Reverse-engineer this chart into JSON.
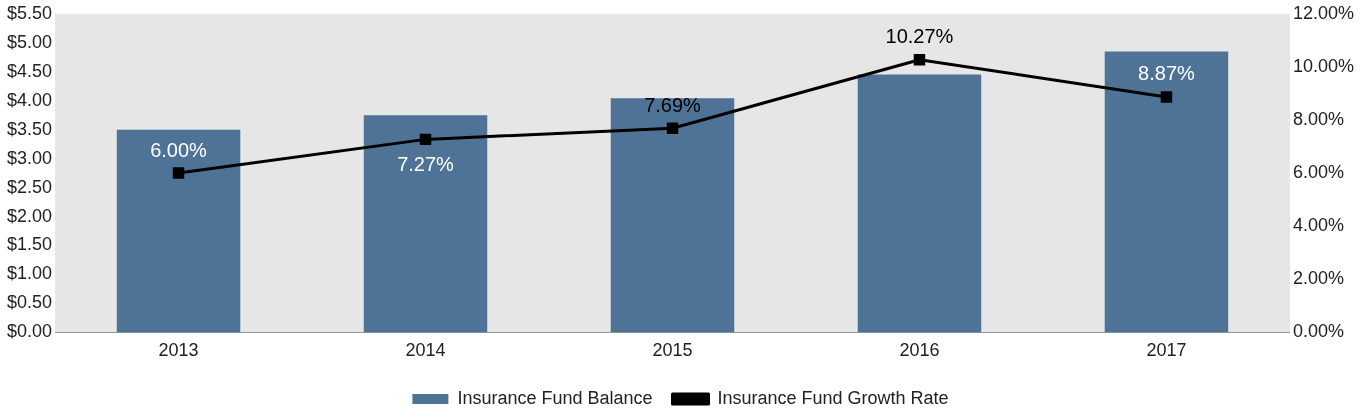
{
  "chart_data": {
    "type": "bar",
    "categories": [
      "2013",
      "2014",
      "2015",
      "2016",
      "2017"
    ],
    "series": [
      {
        "name": "Insurance Fund Balance",
        "color": "#4e7397",
        "values": [
          3.5,
          3.75,
          4.04,
          4.45,
          4.85
        ]
      },
      {
        "name": "Insurance Fund Growth Rate",
        "type": "line",
        "axis": "y2",
        "color": "#000000",
        "marker": "square",
        "values": [
          6.0,
          7.27,
          7.69,
          10.27,
          8.87
        ],
        "value_labels": [
          "6.00%",
          "7.27%",
          "7.69%",
          "10.27%",
          "8.87%"
        ]
      }
    ],
    "ylim": [
      0,
      5.5
    ],
    "yticks": [
      {
        "value": 0,
        "label": "$0.00"
      },
      {
        "value": 0.5,
        "label": "$0.50"
      },
      {
        "value": 1,
        "label": "$1.00"
      },
      {
        "value": 1.5,
        "label": "$1.50"
      },
      {
        "value": 2,
        "label": "$2.00"
      },
      {
        "value": 2.5,
        "label": "$2.50"
      },
      {
        "value": 3,
        "label": "$3.00"
      },
      {
        "value": 3.5,
        "label": "$3.50"
      },
      {
        "value": 4,
        "label": "$4.00"
      },
      {
        "value": 4.5,
        "label": "$4.50"
      },
      {
        "value": 5,
        "label": "$5.00"
      },
      {
        "value": 5.5,
        "label": "$5.50"
      }
    ],
    "y2lim": [
      0,
      12
    ],
    "y2ticks": [
      {
        "value": 0,
        "label": "0.00%"
      },
      {
        "value": 2,
        "label": "2.00%"
      },
      {
        "value": 4,
        "label": "4.00%"
      },
      {
        "value": 6,
        "label": "6.00%"
      },
      {
        "value": 8,
        "label": "8.00%"
      },
      {
        "value": 10,
        "label": "10.00%"
      },
      {
        "value": 12,
        "label": "12.00%"
      }
    ],
    "legend": "bottom"
  }
}
